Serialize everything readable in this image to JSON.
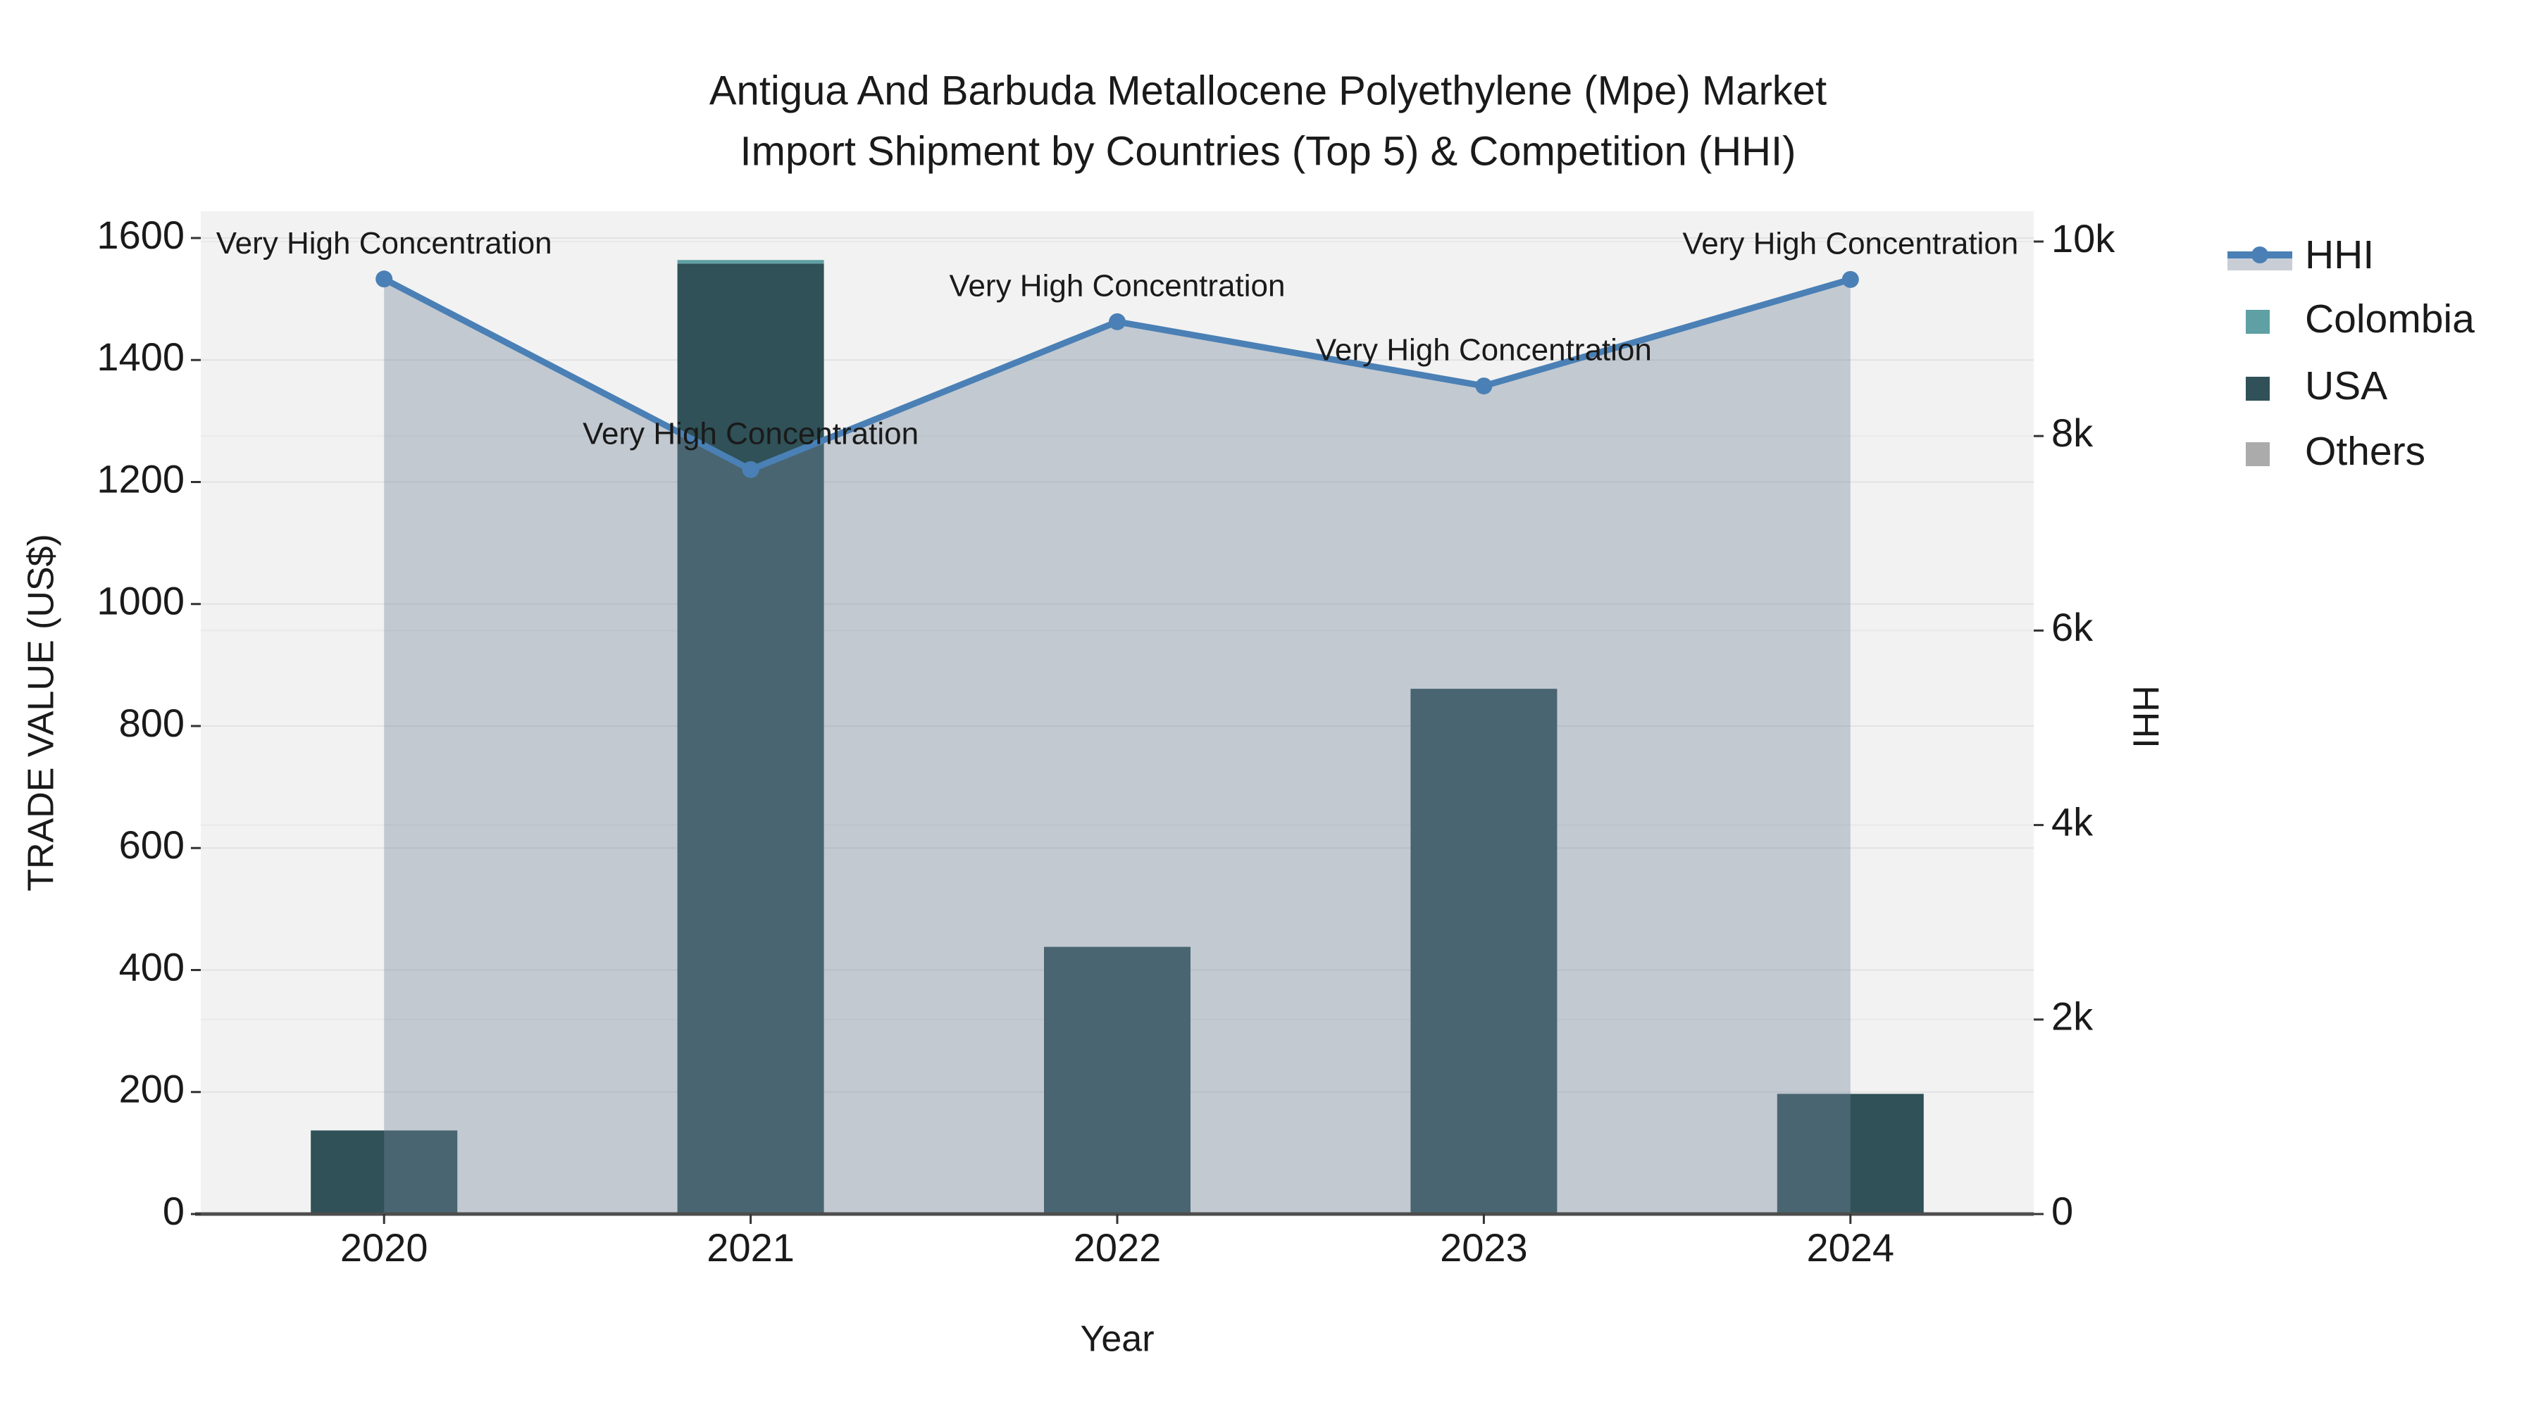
{
  "title": {
    "line1": "Antigua And Barbuda Metallocene Polyethylene (Mpe) Market",
    "line2": "Import Shipment by Countries (Top 5) & Competition (HHI)"
  },
  "axes": {
    "left": {
      "label": "TRADE VALUE (US$)",
      "tick_values": [
        0,
        200,
        400,
        600,
        800,
        1000,
        1200,
        1400,
        1600
      ],
      "range": [
        0,
        1600
      ]
    },
    "right": {
      "label": "HHI",
      "tick_labels": [
        "0",
        "2k",
        "4k",
        "6k",
        "8k",
        "10k"
      ],
      "tick_values": [
        0,
        2000,
        4000,
        6000,
        8000,
        10000
      ],
      "range": [
        0,
        10000
      ]
    },
    "x": {
      "label": "Year",
      "categories": [
        "2020",
        "2021",
        "2022",
        "2023",
        "2024"
      ]
    }
  },
  "legend": [
    {
      "label": "HHI",
      "swatch": "line-area",
      "color": "#4A80B5"
    },
    {
      "label": "Colombia",
      "swatch": "square",
      "color": "#5FA0A4"
    },
    {
      "label": "USA",
      "swatch": "square",
      "color": "#2F5157"
    },
    {
      "label": "Others",
      "swatch": "square",
      "color": "#ABABAB"
    }
  ],
  "chart_data": {
    "type": "bar",
    "subtype": "stacked-bars-with-line-area",
    "categories": [
      "2020",
      "2021",
      "2022",
      "2023",
      "2024"
    ],
    "bar_stack_order": [
      "USA",
      "Colombia",
      "Others"
    ],
    "series": [
      {
        "name": "Colombia",
        "color": "#5FA0A4",
        "axis": "left",
        "values": [
          0,
          6,
          0,
          0,
          0
        ]
      },
      {
        "name": "USA",
        "color": "#2F5157",
        "axis": "left",
        "values": [
          137,
          1558,
          438,
          861,
          197
        ]
      },
      {
        "name": "Others",
        "color": "#ABABAB",
        "axis": "left",
        "values": [
          0,
          0,
          0,
          0,
          0
        ]
      }
    ],
    "line_series": {
      "name": "HHI",
      "color": "#4A80B5",
      "axis": "right",
      "values": [
        9615,
        7655,
        9175,
        8515,
        9610
      ],
      "area_fill": "rgba(115,135,155,0.38)"
    },
    "annotations": [
      {
        "text": "Very High Concentration",
        "category": "2020"
      },
      {
        "text": "Very High Concentration",
        "category": "2021"
      },
      {
        "text": "Very High Concentration",
        "category": "2022"
      },
      {
        "text": "Very High Concentration",
        "category": "2023"
      },
      {
        "text": "Very High Concentration",
        "category": "2024"
      }
    ],
    "title": "Antigua And Barbuda Metallocene Polyethylene (Mpe) Market Import Shipment by Countries (Top 5) & Competition (HHI)",
    "xlabel": "Year",
    "ylabel_left": "TRADE VALUE (US$)",
    "ylabel_right": "HHI",
    "ylim_left": [
      0,
      1600
    ],
    "ylim_right": [
      0,
      10000
    ],
    "grid": true,
    "legend_position": "right"
  },
  "colors": {
    "plot_background": "#F2F2F2",
    "page_background": "#FFFFFF",
    "grid_left": "#E2E2E2",
    "grid_right": "#E9E9E9",
    "axis_line": "#4D4D4D",
    "text": "#1a1a1a",
    "hhi_line": "#4A80B5",
    "hhi_area": "rgba(115,135,155,0.38)",
    "legend_area_swatch": "#C9CED6"
  }
}
